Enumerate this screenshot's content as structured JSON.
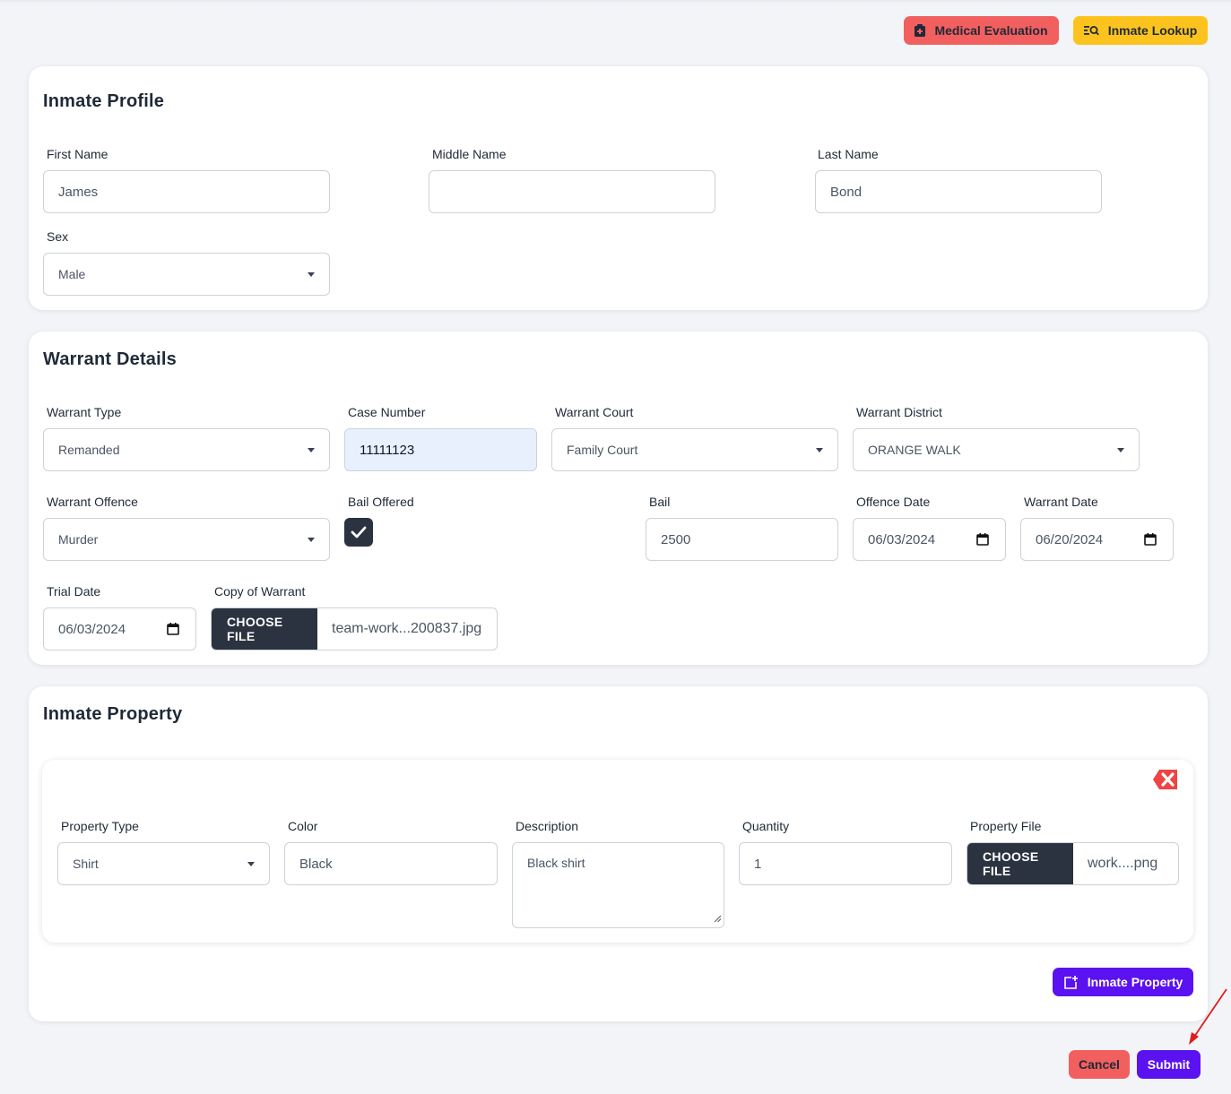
{
  "header": {
    "medical_evaluation_label": "Medical Evaluation",
    "inmate_lookup_label": "Inmate Lookup"
  },
  "profile": {
    "title": "Inmate Profile",
    "first_name_label": "First Name",
    "first_name_value": "James",
    "middle_name_label": "Middle Name",
    "middle_name_value": "",
    "last_name_label": "Last Name",
    "last_name_value": "Bond",
    "sex_label": "Sex",
    "sex_value": "Male"
  },
  "warrant": {
    "title": "Warrant Details",
    "warrant_type_label": "Warrant Type",
    "warrant_type_value": "Remanded",
    "case_number_label": "Case Number",
    "case_number_value": "11111123",
    "warrant_court_label": "Warrant Court",
    "warrant_court_value": "Family Court",
    "warrant_district_label": "Warrant District",
    "warrant_district_value": "ORANGE WALK",
    "warrant_offence_label": "Warrant Offence",
    "warrant_offence_value": "Murder",
    "bail_offered_label": "Bail Offered",
    "bail_offered_checked": true,
    "bail_label": "Bail",
    "bail_value": "2500",
    "offence_date_label": "Offence Date",
    "offence_date_value": "06/03/2024",
    "warrant_date_label": "Warrant Date",
    "warrant_date_value": "06/20/2024",
    "trial_date_label": "Trial Date",
    "trial_date_value": "06/03/2024",
    "copy_of_warrant_label": "Copy of Warrant",
    "choose_file_label": "CHOOSE FILE",
    "copy_file_name": "team-work...200837.jpg"
  },
  "property": {
    "title": "Inmate Property",
    "property_type_label": "Property Type",
    "property_type_value": "Shirt",
    "color_label": "Color",
    "color_value": "Black",
    "description_label": "Description",
    "description_value": "Black shirt",
    "quantity_label": "Quantity",
    "quantity_value": "1",
    "property_file_label": "Property File",
    "choose_file_label": "CHOOSE FILE",
    "property_file_name": "work....png",
    "add_property_label": "Inmate Property"
  },
  "footer": {
    "cancel_label": "Cancel",
    "submit_label": "Submit"
  },
  "colors": {
    "medical_button": "#f25f5f",
    "lookup_button": "#fcc31e",
    "primary_purple": "#5b12f0",
    "dark_button": "#2b3340",
    "remove_icon": "#ef4444",
    "annotation_arrow": "#e11d1d"
  },
  "icons": [
    "medical-kit-icon",
    "search-list-icon",
    "check-icon",
    "calendar-icon",
    "close-box-icon",
    "add-box-icon",
    "chevron-down-icon",
    "arrow-annotation"
  ]
}
